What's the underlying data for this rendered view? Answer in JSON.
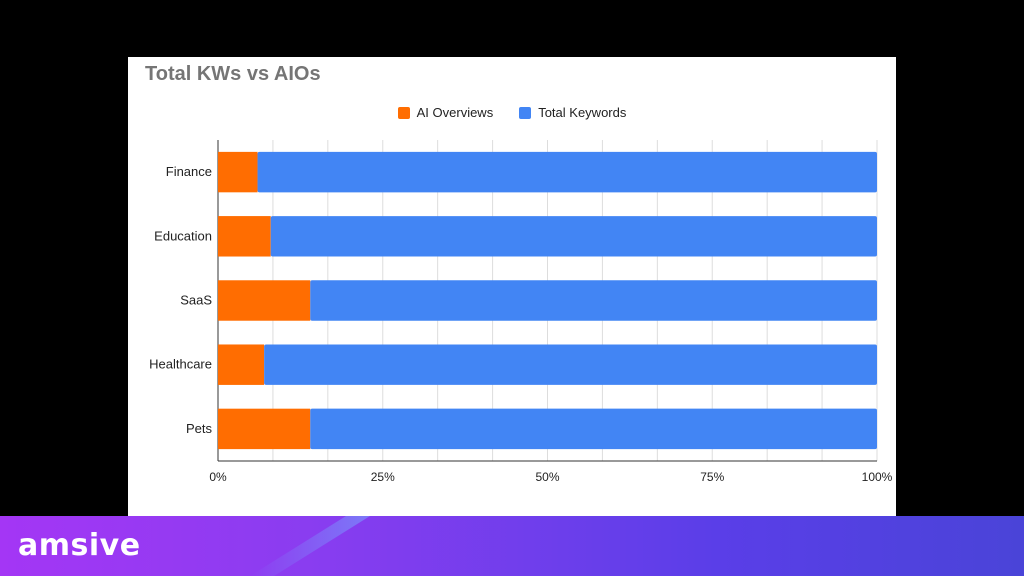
{
  "brand": {
    "name": "amsive"
  },
  "chart_data": {
    "type": "bar",
    "orientation": "horizontal",
    "stacked": "percent",
    "title": "Total KWs vs AIOs",
    "legend_position": "top-center",
    "categories": [
      "Finance",
      "Education",
      "SaaS",
      "Healthcare",
      "Pets"
    ],
    "series": [
      {
        "name": "AI Overviews",
        "color": "#ff6d01",
        "values": [
          6,
          8,
          14,
          7,
          14
        ]
      },
      {
        "name": "Total Keywords",
        "color": "#4285f4",
        "values": [
          94,
          92,
          86,
          93,
          86
        ]
      }
    ],
    "x_ticks": [
      "0%",
      "25%",
      "50%",
      "75%",
      "100%"
    ],
    "xlim": [
      0,
      100
    ],
    "grid": true
  }
}
